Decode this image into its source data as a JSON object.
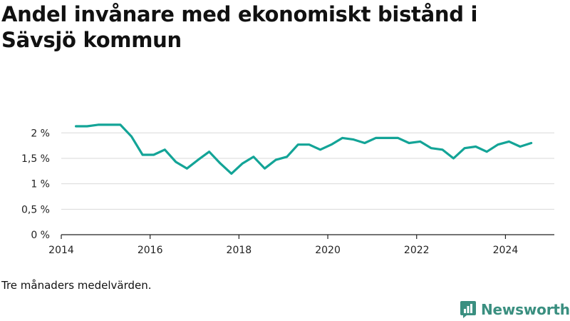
{
  "title": "Andel invånare med ekonomiskt bistånd i Sävsjö kommun",
  "note": "Tre månaders medelvärden.",
  "brand": {
    "name": "Newsworthy",
    "icon": "newsworthy-logo-icon",
    "color": "#3a8f80"
  },
  "chart_data": {
    "type": "line",
    "title": "Andel invånare med ekonomiskt bistånd i Sävsjö kommun",
    "xlabel": "",
    "ylabel": "",
    "xlim": [
      2014,
      2025.1
    ],
    "ylim": [
      0,
      2.2
    ],
    "y_ticks": [
      0,
      0.5,
      1,
      1.5,
      2
    ],
    "y_tick_labels": [
      "0 %",
      "0,5 %",
      "1 %",
      "1,5 %",
      "2 %"
    ],
    "x_ticks": [
      2014,
      2016,
      2018,
      2020,
      2022,
      2024
    ],
    "x_tick_labels": [
      "2014",
      "2016",
      "2018",
      "2020",
      "2022",
      "2024"
    ],
    "grid": "horizontal",
    "color": "#13a497",
    "series": [
      {
        "x": [
          2014.33,
          2014.58,
          2014.83,
          2015.08,
          2015.33,
          2015.58,
          2015.83,
          2016.08,
          2016.33,
          2016.58,
          2016.83,
          2017.08,
          2017.33,
          2017.58,
          2017.83,
          2018.08,
          2018.33,
          2018.58,
          2018.83,
          2019.08,
          2019.33,
          2019.58,
          2019.83,
          2020.08,
          2020.33,
          2020.58,
          2020.83,
          2021.08,
          2021.33,
          2021.58,
          2021.83,
          2022.08,
          2022.33,
          2022.58,
          2022.83,
          2023.08,
          2023.33,
          2023.58,
          2023.83,
          2024.08,
          2024.33,
          2024.58
        ],
        "values": [
          2.13,
          2.13,
          2.16,
          2.16,
          2.16,
          1.93,
          1.57,
          1.57,
          1.67,
          1.43,
          1.3,
          1.47,
          1.63,
          1.4,
          1.2,
          1.4,
          1.53,
          1.3,
          1.47,
          1.53,
          1.77,
          1.77,
          1.67,
          1.77,
          1.9,
          1.87,
          1.8,
          1.9,
          1.9,
          1.9,
          1.8,
          1.83,
          1.7,
          1.67,
          1.5,
          1.7,
          1.73,
          1.63,
          1.77,
          1.83,
          1.73,
          1.8
        ]
      }
    ]
  }
}
